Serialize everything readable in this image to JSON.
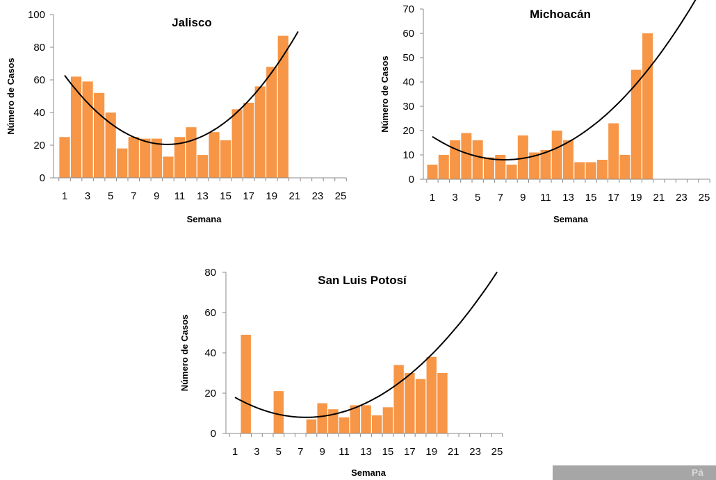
{
  "accent_color": "#f79646",
  "trend_color": "#000000",
  "corner_tab": {
    "text": "Pá"
  },
  "chart_data": [
    {
      "type": "bar",
      "title": "Jalisco",
      "xlabel": "Semana",
      "ylabel": "Número de Casos",
      "ylim": [
        0,
        100
      ],
      "yticks": [
        0,
        20,
        40,
        60,
        80,
        100
      ],
      "xlim": [
        1,
        25
      ],
      "xticks": [
        1,
        3,
        5,
        7,
        9,
        11,
        13,
        15,
        17,
        19,
        21,
        23,
        25
      ],
      "weeks": [
        1,
        2,
        3,
        4,
        5,
        6,
        7,
        8,
        9,
        10,
        11,
        12,
        13,
        14,
        15,
        16,
        17,
        18,
        19,
        20
      ],
      "values": [
        25,
        62,
        59,
        52,
        40,
        18,
        25,
        24,
        24,
        13,
        25,
        31,
        14,
        28,
        23,
        42,
        46,
        56,
        68,
        87
      ],
      "trend": {
        "type": "polynomial-2",
        "coef": [
          0.5328,
          -10.56,
          72.8
        ],
        "x_range": [
          1,
          21.3
        ]
      }
    },
    {
      "type": "bar",
      "title": "Michoacán",
      "xlabel": "Semana",
      "ylabel": "Número de Casos",
      "ylim": [
        0,
        70
      ],
      "yticks": [
        0,
        10,
        20,
        30,
        40,
        50,
        60,
        70
      ],
      "xlim": [
        1,
        25
      ],
      "xticks": [
        1,
        3,
        5,
        7,
        9,
        11,
        13,
        15,
        17,
        19,
        21,
        23,
        25
      ],
      "weeks": [
        1,
        2,
        3,
        4,
        5,
        6,
        7,
        8,
        9,
        10,
        11,
        12,
        13,
        14,
        15,
        16,
        17,
        18,
        19,
        20
      ],
      "values": [
        6,
        10,
        16,
        19,
        16,
        9,
        10,
        6,
        18,
        11,
        12,
        20,
        16,
        7,
        7,
        8,
        23,
        10,
        45,
        60
      ],
      "trend": {
        "type": "polynomial-2",
        "coef": [
          0.2321,
          -3.436,
          20.72
        ],
        "x_range": [
          1,
          25
        ]
      }
    },
    {
      "type": "bar",
      "title": "San Luis Potosí",
      "xlabel": "Semana",
      "ylabel": "Número de Casos",
      "ylim": [
        0,
        80
      ],
      "yticks": [
        0,
        20,
        40,
        60,
        80
      ],
      "xlim": [
        1,
        25
      ],
      "xticks": [
        1,
        3,
        5,
        7,
        9,
        11,
        13,
        15,
        17,
        19,
        21,
        23,
        25
      ],
      "weeks": [
        1,
        2,
        3,
        4,
        5,
        6,
        7,
        8,
        9,
        10,
        11,
        12,
        13,
        14,
        15,
        16,
        17,
        18,
        19,
        20
      ],
      "values": [
        0,
        49,
        0,
        0,
        21,
        0,
        0,
        7,
        15,
        12,
        8,
        14,
        14,
        9,
        13,
        34,
        30,
        27,
        38,
        30
      ],
      "trend": {
        "type": "polynomial-2",
        "coef": [
          0.2354,
          -3.531,
          21.24
        ],
        "x_range": [
          1,
          25
        ]
      }
    }
  ]
}
